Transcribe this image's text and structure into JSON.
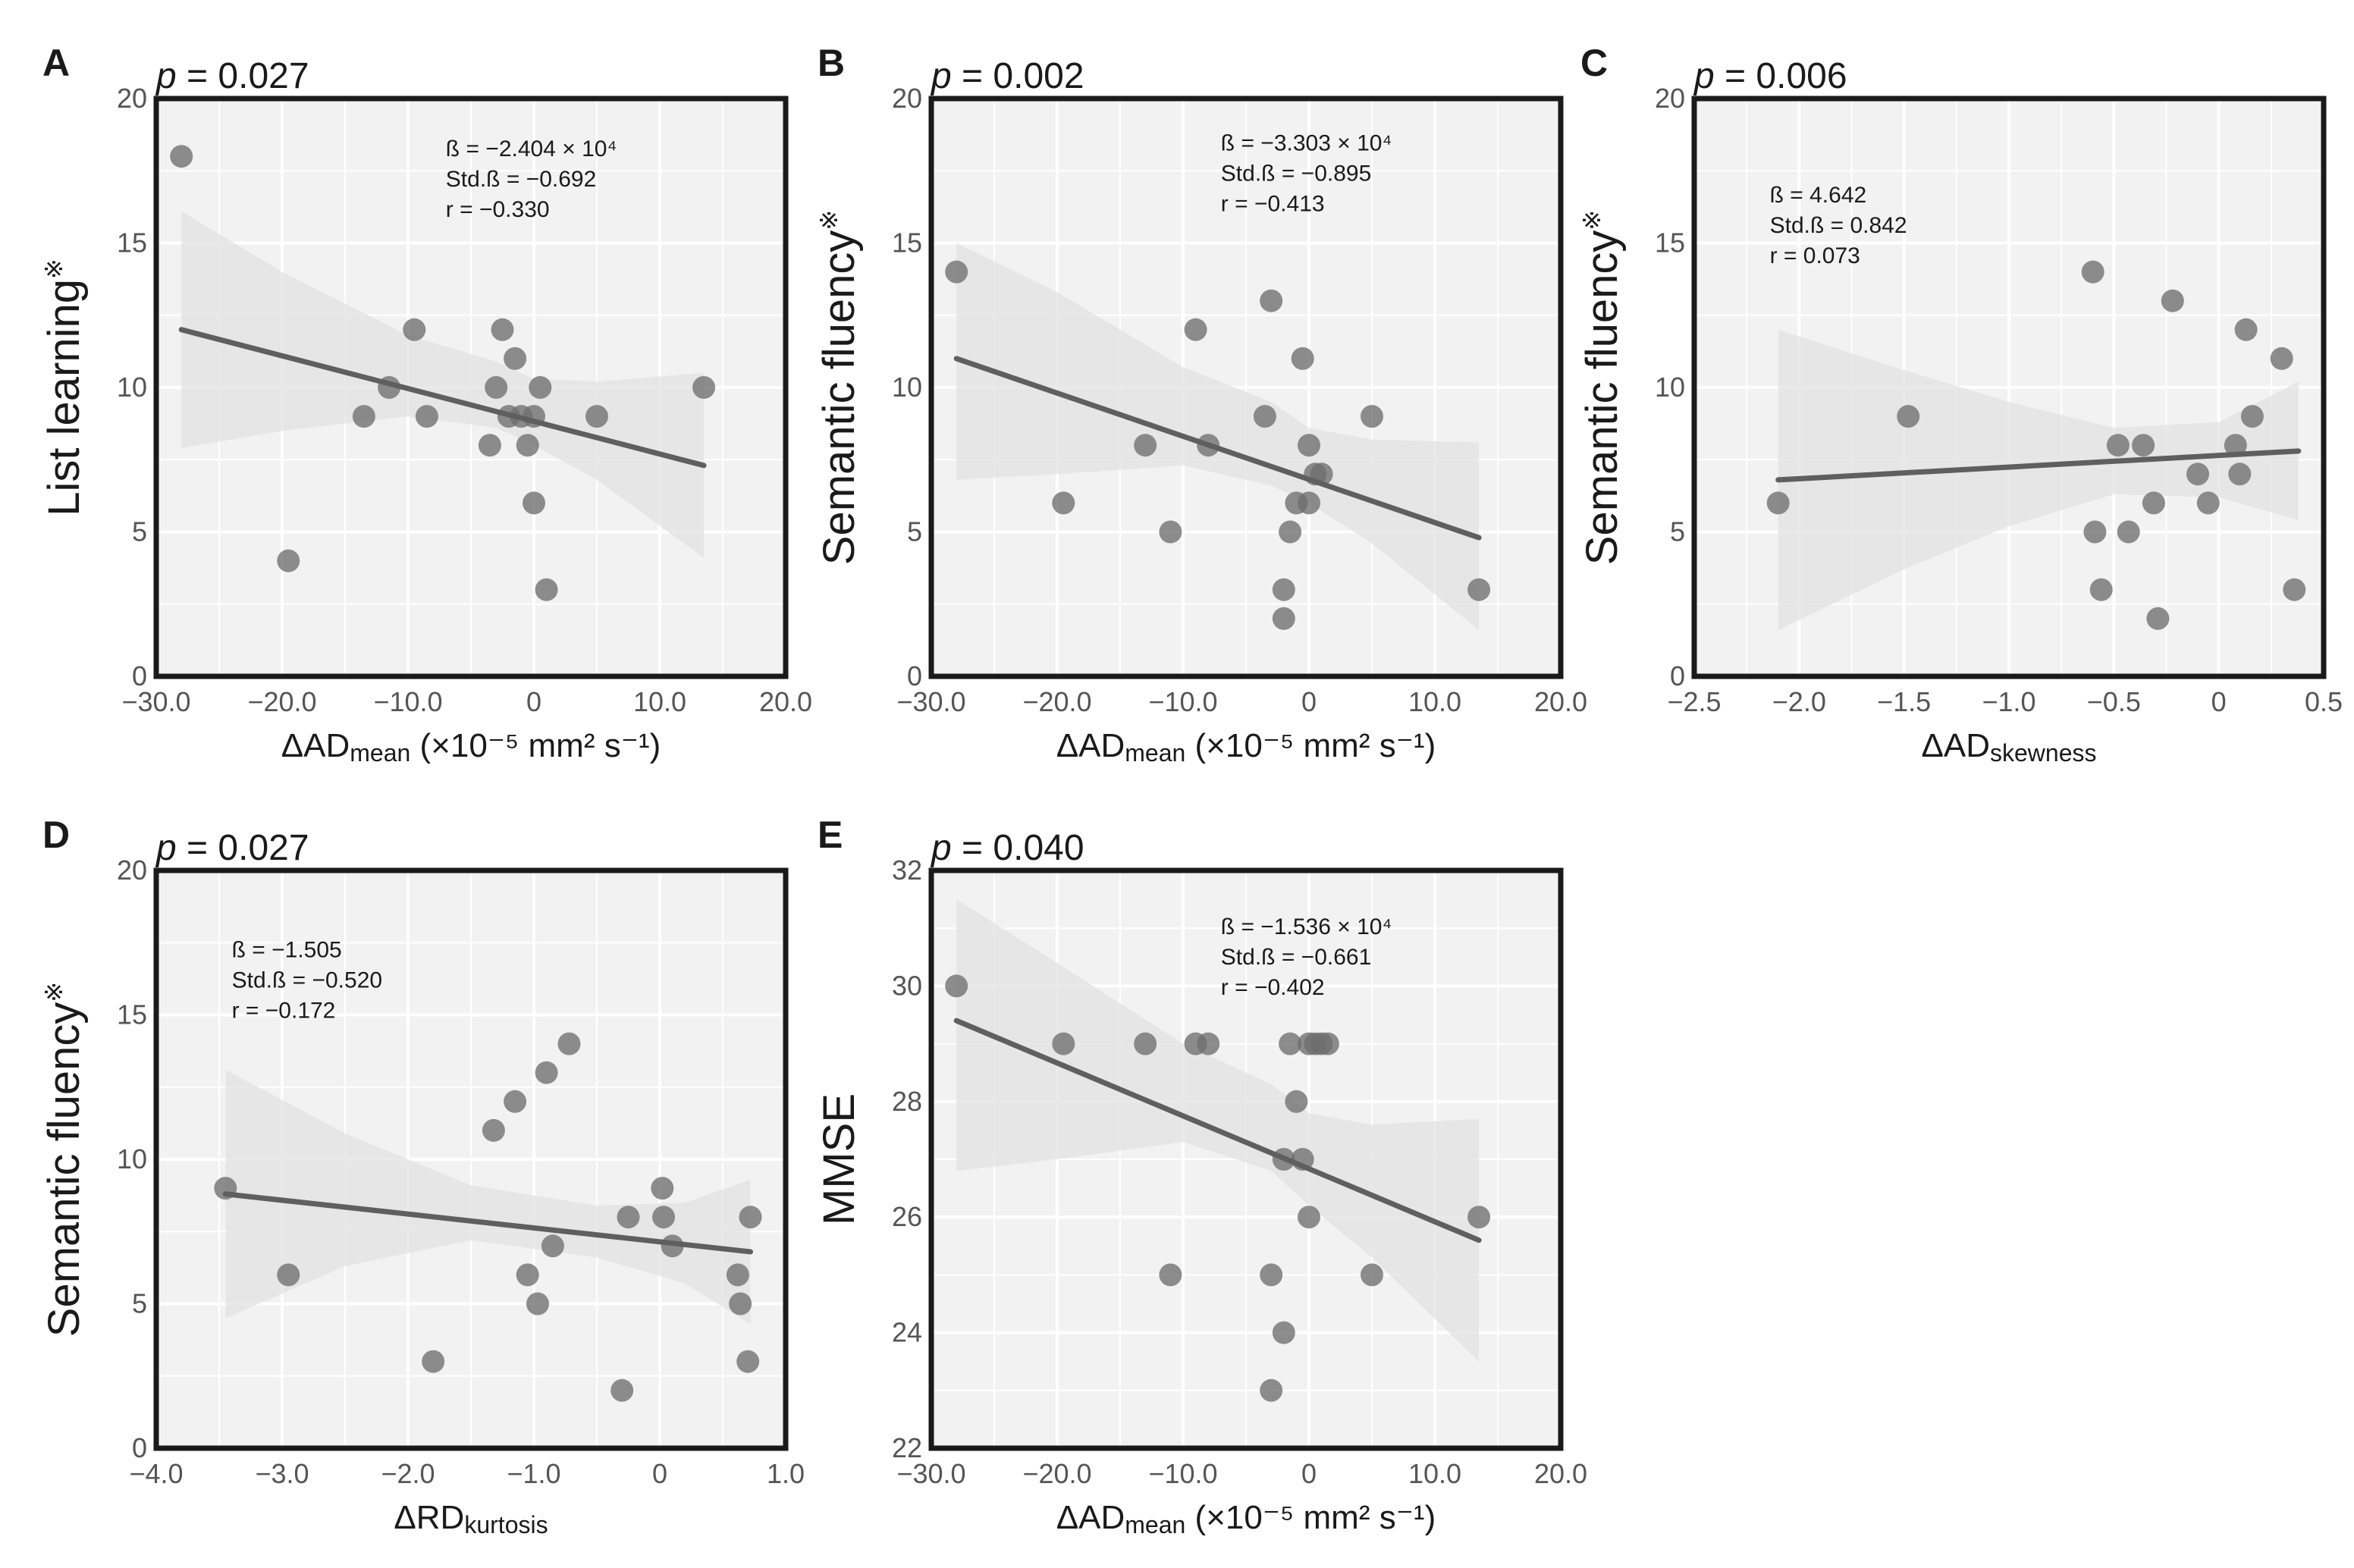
{
  "figure": {
    "title": ""
  },
  "chart_data": [
    {
      "panel": "A",
      "type": "scatter",
      "p_label": "p",
      "p_value": " = 0.027",
      "ylabel": "List learning",
      "ylabel_mark": "※",
      "xlabel": {
        "main": "ΔAD",
        "sub": "mean",
        "tail": " (×10⁻⁵ mm² s⁻¹)"
      },
      "xlim": [
        -30,
        20
      ],
      "ylim": [
        0,
        20
      ],
      "xticks": [
        -30,
        -20,
        -10,
        0,
        10,
        20
      ],
      "xtick_labels": [
        "−30.0",
        "−20.0",
        "−10.0",
        "0",
        "10.0",
        "20.0"
      ],
      "yticks": [
        0,
        5,
        10,
        15,
        20
      ],
      "ytick_labels": [
        "0",
        "5",
        "10",
        "15",
        "20"
      ],
      "stats": [
        "ß = −2.404 × 10⁴",
        "Std.ß = −0.692",
        "r = −0.330"
      ],
      "points": [
        [
          -28,
          18
        ],
        [
          -19.5,
          4
        ],
        [
          -13.5,
          9
        ],
        [
          -11.5,
          10
        ],
        [
          -9.5,
          12
        ],
        [
          -8.5,
          9
        ],
        [
          -3.5,
          8
        ],
        [
          -3,
          10
        ],
        [
          -2.5,
          12
        ],
        [
          -2,
          9
        ],
        [
          -1.5,
          11
        ],
        [
          -1,
          9
        ],
        [
          -0.5,
          8
        ],
        [
          0,
          6
        ],
        [
          0,
          9
        ],
        [
          0.5,
          10
        ],
        [
          1,
          3
        ],
        [
          5,
          9
        ],
        [
          13.5,
          10
        ]
      ],
      "fit": {
        "x": [
          -28,
          13.5
        ],
        "y": [
          12.0,
          7.3
        ]
      },
      "ci": {
        "x": [
          -28,
          -20,
          -10,
          -3,
          0,
          5,
          13.5
        ],
        "upper": [
          16.1,
          14.0,
          11.8,
          10.9,
          10.3,
          10.2,
          10.5
        ],
        "lower": [
          7.9,
          8.5,
          9.0,
          8.6,
          8.0,
          6.8,
          4.1
        ]
      }
    },
    {
      "panel": "B",
      "type": "scatter",
      "p_label": "p",
      "p_value": " = 0.002",
      "ylabel": "Semantic fluency",
      "ylabel_mark": "※",
      "xlabel": {
        "main": "ΔAD",
        "sub": "mean",
        "tail": " (×10⁻⁵ mm² s⁻¹)"
      },
      "xlim": [
        -30,
        20
      ],
      "ylim": [
        0,
        20
      ],
      "xticks": [
        -30,
        -20,
        -10,
        0,
        10,
        20
      ],
      "xtick_labels": [
        "−30.0",
        "−20.0",
        "−10.0",
        "0",
        "10.0",
        "20.0"
      ],
      "yticks": [
        0,
        5,
        10,
        15,
        20
      ],
      "ytick_labels": [
        "0",
        "5",
        "10",
        "15",
        "20"
      ],
      "stats": [
        "ß = −3.303 × 10⁴",
        "Std.ß = −0.895",
        "r = −0.413"
      ],
      "points": [
        [
          -28,
          14
        ],
        [
          -19.5,
          6
        ],
        [
          -13,
          8
        ],
        [
          -11,
          5
        ],
        [
          -9,
          12
        ],
        [
          -8,
          8
        ],
        [
          -3,
          13
        ],
        [
          -3.5,
          9
        ],
        [
          -2,
          3
        ],
        [
          -2,
          2
        ],
        [
          -1.5,
          5
        ],
        [
          -1,
          6
        ],
        [
          -0.5,
          11
        ],
        [
          0,
          8
        ],
        [
          0,
          6
        ],
        [
          0.5,
          7
        ],
        [
          1,
          7
        ],
        [
          5,
          9
        ],
        [
          13.5,
          3
        ]
      ],
      "fit": {
        "x": [
          -28,
          13.5
        ],
        "y": [
          11.0,
          4.8
        ]
      },
      "ci": {
        "x": [
          -28,
          -20,
          -10,
          -3,
          0,
          5,
          13.5
        ],
        "upper": [
          15.0,
          13.3,
          10.7,
          9.5,
          8.6,
          8.2,
          8.1
        ],
        "lower": [
          6.8,
          7.0,
          7.3,
          6.6,
          6.0,
          4.6,
          1.6
        ]
      }
    },
    {
      "panel": "C",
      "type": "scatter",
      "p_label": "p",
      "p_value": " = 0.006",
      "ylabel": "Semantic fluency",
      "ylabel_mark": "※",
      "xlabel": {
        "main": "ΔAD",
        "sub": "skewness",
        "tail": ""
      },
      "xlim": [
        -2.5,
        0.5
      ],
      "ylim": [
        0,
        20
      ],
      "xticks": [
        -2.5,
        -2.0,
        -1.5,
        -1.0,
        -0.5,
        0,
        0.5
      ],
      "xtick_labels": [
        "−2.5",
        "−2.0",
        "−1.5",
        "−1.0",
        "−0.5",
        "0",
        "0.5"
      ],
      "yticks": [
        0,
        5,
        10,
        15,
        20
      ],
      "ytick_labels": [
        "0",
        "5",
        "10",
        "15",
        "20"
      ],
      "stats": [
        "ß = 4.642",
        "Std.ß = 0.842",
        "r = 0.073"
      ],
      "points": [
        [
          -2.1,
          6
        ],
        [
          -1.48,
          9
        ],
        [
          -0.6,
          14
        ],
        [
          -0.59,
          5
        ],
        [
          -0.56,
          3
        ],
        [
          -0.48,
          8
        ],
        [
          -0.43,
          5
        ],
        [
          -0.36,
          8
        ],
        [
          -0.31,
          6
        ],
        [
          -0.29,
          2
        ],
        [
          -0.22,
          13
        ],
        [
          -0.1,
          7
        ],
        [
          -0.05,
          6
        ],
        [
          0.08,
          8
        ],
        [
          0.1,
          7
        ],
        [
          0.13,
          12
        ],
        [
          0.16,
          9
        ],
        [
          0.3,
          11
        ],
        [
          0.36,
          3
        ]
      ],
      "fit": {
        "x": [
          -2.1,
          0.38
        ],
        "y": [
          6.8,
          7.8
        ]
      },
      "ci": {
        "x": [
          -2.1,
          -1.5,
          -1.0,
          -0.5,
          0,
          0.38
        ],
        "upper": [
          12.0,
          10.6,
          9.5,
          8.6,
          8.8,
          10.2
        ],
        "lower": [
          1.6,
          3.7,
          5.2,
          6.3,
          6.2,
          5.4
        ]
      }
    },
    {
      "panel": "D",
      "type": "scatter",
      "p_label": "p",
      "p_value": " = 0.027",
      "ylabel": "Semantic fluency",
      "ylabel_mark": "※",
      "xlabel": {
        "main": "ΔRD",
        "sub": "kurtosis",
        "tail": ""
      },
      "xlim": [
        -4,
        1
      ],
      "ylim": [
        0,
        20
      ],
      "xticks": [
        -4,
        -3,
        -2,
        -1,
        0,
        1
      ],
      "xtick_labels": [
        "−4.0",
        "−3.0",
        "−2.0",
        "−1.0",
        "0",
        "1.0"
      ],
      "yticks": [
        0,
        5,
        10,
        15,
        20
      ],
      "ytick_labels": [
        "0",
        "5",
        "10",
        "15",
        "20"
      ],
      "stats": [
        "ß = −1.505",
        "Std.ß = −0.520",
        "r = −0.172"
      ],
      "points": [
        [
          -3.45,
          9
        ],
        [
          -2.95,
          6
        ],
        [
          -1.8,
          3
        ],
        [
          -1.32,
          11
        ],
        [
          -1.15,
          12
        ],
        [
          -1.05,
          6
        ],
        [
          -0.97,
          5
        ],
        [
          -0.9,
          13
        ],
        [
          -0.85,
          7
        ],
        [
          -0.72,
          14
        ],
        [
          -0.3,
          2
        ],
        [
          -0.25,
          8
        ],
        [
          0.02,
          9
        ],
        [
          0.03,
          8
        ],
        [
          0.1,
          7
        ],
        [
          0.62,
          6
        ],
        [
          0.64,
          5
        ],
        [
          0.7,
          3
        ],
        [
          0.72,
          8
        ]
      ],
      "fit": {
        "x": [
          -3.45,
          0.72
        ],
        "y": [
          8.8,
          6.8
        ]
      },
      "ci": {
        "x": [
          -3.45,
          -2.5,
          -1.5,
          -0.5,
          0.2,
          0.72
        ],
        "upper": [
          13.1,
          10.9,
          9.1,
          8.4,
          8.5,
          9.3
        ],
        "lower": [
          4.5,
          6.3,
          7.2,
          6.6,
          5.7,
          4.3
        ]
      }
    },
    {
      "panel": "E",
      "type": "scatter",
      "p_label": "p",
      "p_value": " = 0.040",
      "ylabel": "MMSE",
      "ylabel_mark": "",
      "xlabel": {
        "main": "ΔAD",
        "sub": "mean",
        "tail": " (×10⁻⁵ mm² s⁻¹)"
      },
      "xlim": [
        -30,
        20
      ],
      "ylim": [
        22,
        32
      ],
      "xticks": [
        -30,
        -20,
        -10,
        0,
        10,
        20
      ],
      "xtick_labels": [
        "−30.0",
        "−20.0",
        "−10.0",
        "0",
        "10.0",
        "20.0"
      ],
      "yticks": [
        22,
        24,
        26,
        28,
        30,
        32
      ],
      "ytick_labels": [
        "22",
        "24",
        "26",
        "28",
        "30",
        "32"
      ],
      "stats": [
        "ß = −1.536 × 10⁴",
        "Std.ß = −0.661",
        "r = −0.402"
      ],
      "points": [
        [
          -28,
          30
        ],
        [
          -19.5,
          29
        ],
        [
          -13,
          29
        ],
        [
          -11,
          25
        ],
        [
          -9,
          29
        ],
        [
          -8,
          29
        ],
        [
          -3,
          25
        ],
        [
          -3,
          23
        ],
        [
          -2,
          24
        ],
        [
          -2,
          27
        ],
        [
          -1.5,
          29
        ],
        [
          -1,
          28
        ],
        [
          -0.5,
          27
        ],
        [
          0,
          26
        ],
        [
          0,
          29
        ],
        [
          0.5,
          29
        ],
        [
          1,
          29
        ],
        [
          1.5,
          29
        ],
        [
          5,
          25
        ],
        [
          13.5,
          26
        ]
      ],
      "fit": {
        "x": [
          -28,
          13.5
        ],
        "y": [
          29.4,
          25.6
        ]
      },
      "ci": {
        "x": [
          -28,
          -20,
          -10,
          -3,
          0,
          5,
          13.5
        ],
        "upper": [
          31.5,
          30.4,
          29.0,
          28.3,
          27.8,
          27.6,
          27.7
        ],
        "lower": [
          26.8,
          27.0,
          27.3,
          26.8,
          26.2,
          25.3,
          23.5
        ]
      }
    }
  ]
}
